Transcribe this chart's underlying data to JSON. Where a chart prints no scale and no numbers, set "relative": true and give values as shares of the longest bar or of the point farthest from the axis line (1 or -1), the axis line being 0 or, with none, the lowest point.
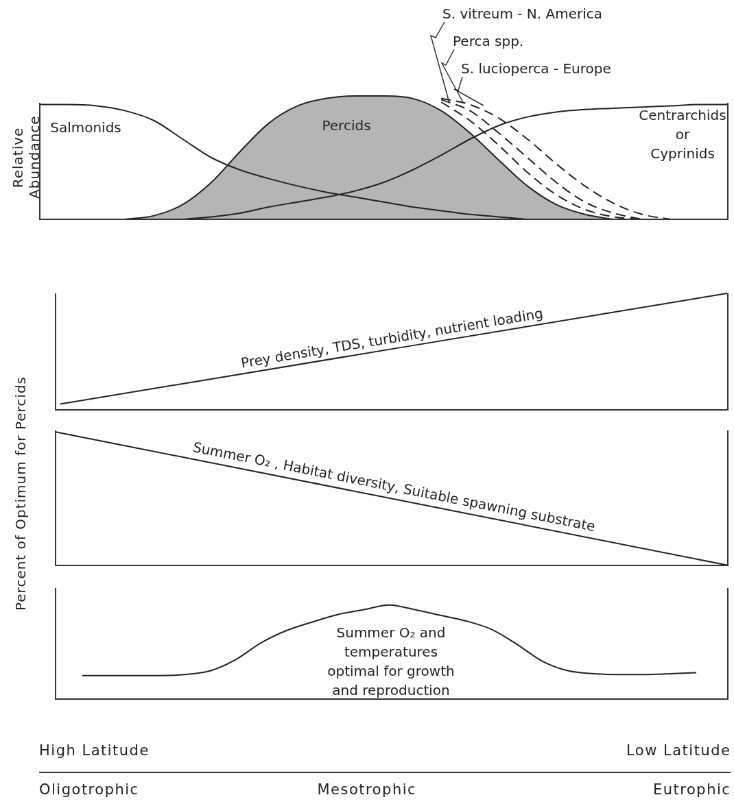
{
  "chart_data": [
    {
      "type": "line",
      "relative": true,
      "ylabel": "Relative Abundance",
      "categories": [
        null,
        null,
        null,
        null,
        null,
        null,
        null,
        null,
        null,
        null,
        null,
        null,
        null,
        null,
        null,
        null,
        null,
        null,
        null,
        null,
        null,
        null,
        null,
        null,
        null
      ],
      "series": [
        {
          "name": "Salmonids",
          "color": "#222222",
          "values": [
            0.93,
            0.93,
            0.92,
            0.88,
            0.8,
            0.65,
            0.5,
            0.4,
            0.33,
            0.27,
            0.22,
            0.18,
            0.14,
            0.1,
            0.07,
            0.04,
            0.02,
            0,
            null,
            null,
            null,
            null,
            null,
            null,
            null
          ]
        },
        {
          "name": "Percids",
          "type": "area",
          "color": "#222222",
          "values": [
            null,
            null,
            null,
            0,
            0.03,
            0.12,
            0.3,
            0.55,
            0.78,
            0.92,
            0.98,
            1,
            1,
            0.98,
            0.88,
            0.7,
            0.48,
            0.27,
            0.12,
            0.04,
            0,
            null,
            null,
            null,
            null
          ]
        },
        {
          "name": "Centrarchids or Cyprinids",
          "color": "#222222",
          "values": [
            null,
            null,
            null,
            null,
            null,
            0,
            0.02,
            0.05,
            0.1,
            0.14,
            0.18,
            0.23,
            0.3,
            0.4,
            0.52,
            0.65,
            0.76,
            0.83,
            0.87,
            0.89,
            0.9,
            0.91,
            0.92,
            0.93,
            0.93
          ]
        },
        {
          "name": "S. vitreum - N. America",
          "color": "#222222",
          "line_style": "dashed",
          "values": [
            null,
            null,
            null,
            null,
            null,
            null,
            null,
            null,
            null,
            null,
            null,
            null,
            null,
            null,
            0.95,
            0.8,
            0.6,
            0.38,
            0.2,
            0.08,
            0.02,
            0,
            null,
            null,
            null
          ]
        },
        {
          "name": "Perca spp.",
          "color": "#222222",
          "line_style": "dashed",
          "values": [
            null,
            null,
            null,
            null,
            null,
            null,
            null,
            null,
            null,
            null,
            null,
            null,
            null,
            null,
            0.97,
            0.88,
            0.7,
            0.5,
            0.3,
            0.14,
            0.05,
            0,
            null,
            null,
            null
          ]
        },
        {
          "name": "S. lucioperca - Europe",
          "color": "#222222",
          "line_style": "dashed",
          "values": [
            null,
            null,
            null,
            null,
            null,
            null,
            null,
            null,
            null,
            null,
            null,
            null,
            null,
            null,
            0.98,
            0.93,
            0.82,
            0.65,
            0.45,
            0.27,
            0.13,
            0.04,
            0,
            null,
            null
          ]
        }
      ]
    },
    {
      "type": "line",
      "relative": true,
      "categories": [
        null,
        null
      ],
      "series": [
        {
          "name": "Prey density, TDS, turbidity, nutrient loading",
          "color": "#222222",
          "values": [
            0.05,
            1
          ]
        }
      ]
    },
    {
      "type": "line",
      "relative": true,
      "ylabel": "Percent of Optimum for Percids",
      "categories": [
        null,
        null
      ],
      "series": [
        {
          "name": "Summer O₂ , Habitat diversity, Suitable spawning substrate",
          "color": "#222222",
          "values": [
            1,
            0
          ]
        }
      ]
    },
    {
      "type": "line",
      "relative": true,
      "categories": [
        null,
        null,
        null,
        null,
        null,
        null,
        null,
        null,
        null,
        null,
        null,
        null,
        null,
        null,
        null,
        null,
        null,
        null,
        null,
        null,
        null,
        null,
        null,
        null,
        null
      ],
      "series": [
        {
          "name": "Summer O₂ and temperatures optimal for growth and reproduction",
          "color": "#222222",
          "values": [
            0.25,
            0.25,
            0.25,
            0.25,
            0.26,
            0.3,
            0.42,
            0.6,
            0.73,
            0.82,
            0.9,
            0.95,
            1,
            0.95,
            0.89,
            0.83,
            0.74,
            0.58,
            0.4,
            0.3,
            0.27,
            0.26,
            0.26,
            0.27,
            0.28
          ]
        }
      ],
      "annotations": [
        "High Latitude",
        "Low Latitude",
        "Oligotrophic",
        "Mesotrophic",
        "Eutrophic"
      ]
    }
  ]
}
